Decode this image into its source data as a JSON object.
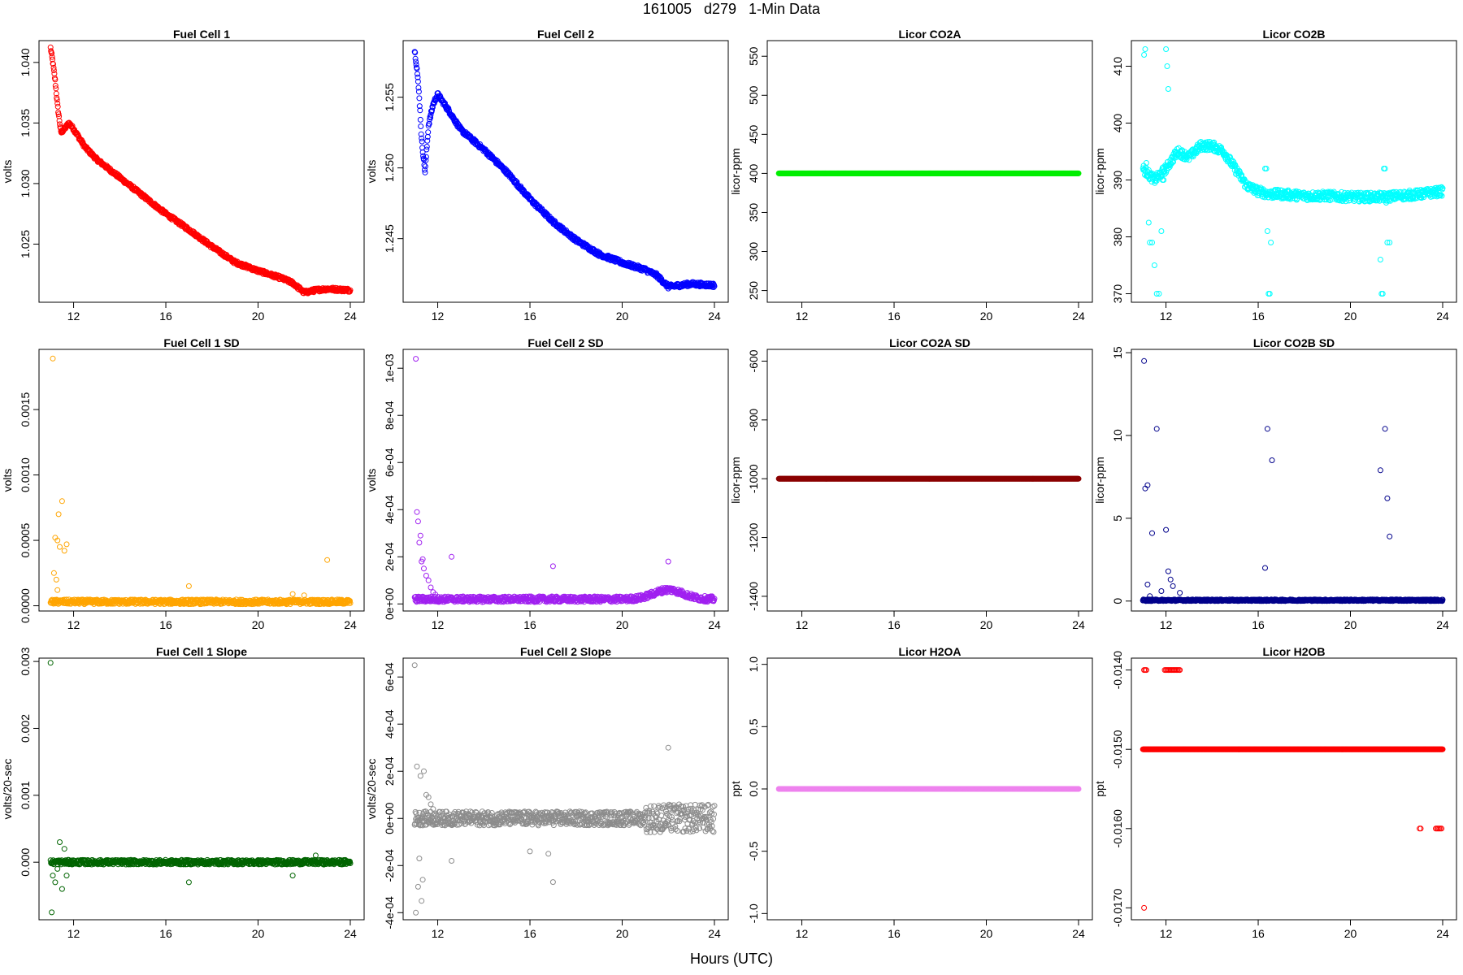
{
  "page": {
    "title": "161005   d279   1-Min Data",
    "xlabel": "Hours (UTC)"
  },
  "x_axis": {
    "ticks": [
      12,
      16,
      20,
      24
    ],
    "labels": [
      "12",
      "16",
      "20",
      "24"
    ],
    "range": [
      10.5,
      24.6
    ]
  },
  "chart_data": [
    {
      "id": "p0",
      "title": "Fuel Cell 1",
      "type": "scatter",
      "color": "#ff0000",
      "ylabel": "volts",
      "ylim": [
        1.0202,
        1.0418
      ],
      "yticks": [
        1.025,
        1.03,
        1.035,
        1.04
      ],
      "yticklabels": [
        "1.025",
        "1.030",
        "1.035",
        "1.040"
      ],
      "series": {
        "kind": "curve",
        "x": [
          11.0,
          11.1,
          11.2,
          11.3,
          11.45,
          11.6,
          11.8,
          12.0,
          12.5,
          13.0,
          14.0,
          15.0,
          16.0,
          17.0,
          18.0,
          19.0,
          20.0,
          21.0,
          21.5,
          22.0,
          22.5,
          23.0,
          24.0
        ],
        "y": [
          1.0412,
          1.04,
          1.0385,
          1.0365,
          1.0342,
          1.0345,
          1.035,
          1.0345,
          1.033,
          1.032,
          1.0305,
          1.029,
          1.0275,
          1.0262,
          1.0248,
          1.0235,
          1.0228,
          1.0222,
          1.0218,
          1.021,
          1.0212,
          1.0213,
          1.0212
        ],
        "noise": 0.00015
      }
    },
    {
      "id": "p1",
      "title": "Fuel Cell 2",
      "type": "scatter",
      "color": "#0000ff",
      "ylabel": "volts",
      "ylim": [
        1.2405,
        1.259
      ],
      "yticks": [
        1.245,
        1.25,
        1.255
      ],
      "yticklabels": [
        "1.245",
        "1.250",
        "1.255"
      ],
      "series": {
        "kind": "curve",
        "x": [
          11.0,
          11.1,
          11.2,
          11.3,
          11.45,
          11.6,
          11.8,
          12.0,
          12.5,
          13.0,
          14.0,
          15.0,
          16.0,
          17.0,
          18.0,
          19.0,
          20.0,
          21.0,
          21.5,
          22.0,
          22.5,
          23.0,
          24.0
        ],
        "y": [
          1.2583,
          1.257,
          1.255,
          1.252,
          1.2497,
          1.253,
          1.2545,
          1.2552,
          1.254,
          1.2527,
          1.2513,
          1.2497,
          1.2478,
          1.2462,
          1.2449,
          1.2439,
          1.2433,
          1.2428,
          1.2424,
          1.2416,
          1.2417,
          1.2418,
          1.2417
        ],
        "noise": 0.00015
      }
    },
    {
      "id": "p2",
      "title": "Licor CO2A",
      "type": "scatter",
      "color": "#00ee00",
      "ylabel": "licor-ppm",
      "ylim": [
        235,
        570
      ],
      "yticks": [
        250,
        300,
        350,
        400,
        450,
        500,
        550
      ],
      "yticklabels": [
        "250",
        "300",
        "350",
        "400",
        "450",
        "500",
        "550"
      ],
      "series": {
        "kind": "const",
        "y": 400
      }
    },
    {
      "id": "p3",
      "title": "Licor CO2B",
      "type": "scatter",
      "color": "#00ffff",
      "ylabel": "licor-ppm",
      "ylim": [
        368.5,
        414.5
      ],
      "yticks": [
        370,
        380,
        390,
        400,
        410
      ],
      "yticklabels": [
        "370",
        "380",
        "390",
        "400",
        "410"
      ],
      "series": {
        "kind": "curve",
        "x": [
          11.0,
          11.5,
          12.0,
          12.5,
          13.0,
          13.5,
          14.0,
          14.5,
          15.0,
          15.5,
          16.0,
          16.5,
          17.0,
          18.0,
          19.0,
          20.0,
          21.0,
          21.5,
          22.0,
          23.0,
          24.0
        ],
        "y": [
          392,
          390,
          392,
          395,
          394,
          396,
          396,
          395,
          392,
          389,
          388,
          387.5,
          387.5,
          387.2,
          387.2,
          387.0,
          387.0,
          387.0,
          387.2,
          387.5,
          388
        ],
        "noise": 0.8,
        "extra": {
          "x": [
            11.05,
            11.1,
            11.15,
            11.2,
            11.25,
            11.3,
            11.4,
            11.5,
            11.6,
            11.7,
            11.8,
            11.82,
            11.85,
            11.9,
            12.0,
            12.05,
            12.1,
            16.3,
            16.35,
            16.4,
            16.45,
            16.5,
            16.55,
            21.3,
            21.35,
            21.4,
            21.45,
            21.5,
            21.55,
            21.6,
            21.7
          ],
          "y": [
            412,
            413,
            393,
            391.5,
            382.5,
            379,
            379,
            375,
            370,
            370,
            381,
            391,
            390,
            390,
            413,
            410,
            406,
            392,
            392,
            381,
            370,
            370,
            379,
            376,
            370,
            370,
            392,
            392,
            386,
            379,
            379
          ]
        }
      }
    },
    {
      "id": "p4",
      "title": "Fuel Cell 1 SD",
      "type": "scatter",
      "color": "#ffa500",
      "ylabel": "volts",
      "ylim": [
        -4e-05,
        0.00196
      ],
      "yticks": [
        0.0,
        0.0005,
        0.001,
        0.0015
      ],
      "yticklabels": [
        "0.0000",
        "0.0005",
        "0.0010",
        "0.0015"
      ],
      "series": {
        "kind": "noise",
        "base": 3e-05,
        "noise": 1.8e-05,
        "extra": {
          "x": [
            11.1,
            11.2,
            11.3,
            11.35,
            11.4,
            11.5,
            11.6,
            11.7,
            11.25,
            11.3,
            11.15,
            17.0,
            23.0,
            22.0,
            21.5
          ],
          "y": [
            0.00189,
            0.00052,
            0.0005,
            0.0007,
            0.00045,
            0.0008,
            0.00042,
            0.00047,
            0.0002,
            0.00012,
            0.00025,
            0.00015,
            0.00035,
            8e-05,
            9e-05
          ]
        }
      }
    },
    {
      "id": "p5",
      "title": "Fuel Cell 2 SD",
      "type": "scatter",
      "color": "#a020f0",
      "ylabel": "volts",
      "ylim": [
        -3e-05,
        0.00108
      ],
      "yticks": [
        0.0,
        0.0002,
        0.0004,
        0.0006,
        0.0008,
        0.001
      ],
      "yticklabels": [
        "0e+00",
        "2e-04",
        "4e-04",
        "6e-04",
        "8e-04",
        "1e-03"
      ],
      "series": {
        "kind": "noise",
        "base": 2e-05,
        "noise": 1.2e-05,
        "bump": {
          "center": 22.0,
          "width": 0.9,
          "height": 4e-05
        },
        "extra": {
          "x": [
            11.05,
            11.1,
            11.15,
            11.2,
            11.25,
            11.3,
            11.35,
            11.4,
            11.5,
            11.6,
            12.6,
            17.0,
            22.0,
            11.7,
            11.8,
            11.9
          ],
          "y": [
            0.00104,
            0.00039,
            0.00035,
            0.00026,
            0.00029,
            0.00018,
            0.00019,
            0.00015,
            0.00012,
            0.0001,
            0.0002,
            0.00016,
            0.00018,
            7e-05,
            5e-05,
            4e-05
          ]
        }
      }
    },
    {
      "id": "p6",
      "title": "Licor CO2A SD",
      "type": "scatter",
      "color": "#8b0000",
      "ylabel": "licor-ppm",
      "ylim": [
        -1450,
        -560
      ],
      "yticks": [
        -1400,
        -1200,
        -1000,
        -800,
        -600
      ],
      "yticklabels": [
        "-1400",
        "-1200",
        "-1000",
        "-800",
        "-600"
      ],
      "series": {
        "kind": "const",
        "y": -1000
      }
    },
    {
      "id": "p7",
      "title": "Licor CO2B SD",
      "type": "scatter",
      "color": "#00008b",
      "ylabel": "licor-ppm",
      "ylim": [
        -0.6,
        15.2
      ],
      "yticks": [
        0,
        5,
        10,
        15
      ],
      "yticklabels": [
        "0",
        "5",
        "10",
        "15"
      ],
      "series": {
        "kind": "noise",
        "base": 0.05,
        "noise": 0.05,
        "extra": {
          "x": [
            11.05,
            11.1,
            11.2,
            11.4,
            11.6,
            11.8,
            12.0,
            12.1,
            12.2,
            12.3,
            12.6,
            11.2,
            11.3,
            16.3,
            16.4,
            16.6,
            21.3,
            21.5,
            21.6,
            21.7
          ],
          "y": [
            14.5,
            6.8,
            7.0,
            4.1,
            10.4,
            0.6,
            4.3,
            1.8,
            1.3,
            0.9,
            0.5,
            1.0,
            0.3,
            2.0,
            10.4,
            8.5,
            7.9,
            10.4,
            6.2,
            3.9
          ]
        }
      }
    },
    {
      "id": "p8",
      "title": "Fuel Cell 1 Slope",
      "type": "scatter",
      "color": "#006400",
      "ylabel": "volts/20-sec",
      "ylim": [
        -0.00086,
        0.00305
      ],
      "yticks": [
        0.0,
        0.001,
        0.002,
        0.003
      ],
      "yticklabels": [
        "0.000",
        "0.001",
        "0.002",
        "0.003"
      ],
      "series": {
        "kind": "noise",
        "base": 0.0,
        "noise": 3.5e-05,
        "extra": {
          "x": [
            11.0,
            11.05,
            11.1,
            11.2,
            11.3,
            11.4,
            11.5,
            11.6,
            11.7,
            17.0,
            21.5,
            22.5
          ],
          "y": [
            0.00298,
            -0.00075,
            -0.0002,
            -0.0003,
            -0.0001,
            0.0003,
            -0.0004,
            0.0002,
            -0.0002,
            -0.0003,
            -0.0002,
            0.0001
          ]
        }
      }
    },
    {
      "id": "p9",
      "title": "Fuel Cell 2 Slope",
      "type": "scatter",
      "color": "#8c8c8c",
      "ylabel": "volts/20-sec",
      "ylim": [
        -0.00043,
        0.00068
      ],
      "yticks": [
        -0.0004,
        -0.0002,
        0.0,
        0.0002,
        0.0004,
        0.0006
      ],
      "yticklabels": [
        "-4e-04",
        "-2e-04",
        "0e+00",
        "2e-04",
        "4e-04",
        "6e-04"
      ],
      "series": {
        "kind": "noise",
        "base": 0.0,
        "noise": 3e-05,
        "bump": {
          "center": 22.5,
          "width": 1.8,
          "height": 0.0
        },
        "noise_tail": 6e-05,
        "extra": {
          "x": [
            11.0,
            11.05,
            11.1,
            11.15,
            11.2,
            11.25,
            11.3,
            11.35,
            11.4,
            11.5,
            11.6,
            11.7,
            11.8,
            12.6,
            16.0,
            16.8,
            17.0,
            22.0
          ],
          "y": [
            0.00065,
            -0.0004,
            0.00022,
            -0.00029,
            -0.00017,
            0.00018,
            -0.00035,
            -0.00026,
            0.0002,
            0.0001,
            9e-05,
            6e-05,
            4e-05,
            -0.00018,
            -0.00014,
            -0.00015,
            -0.00027,
            0.0003
          ]
        }
      }
    },
    {
      "id": "p10",
      "title": "Licor H2OA",
      "type": "scatter",
      "color": "#ee82ee",
      "ylabel": "ppt",
      "ylim": [
        -1.05,
        1.05
      ],
      "yticks": [
        -1.0,
        -0.5,
        0.0,
        0.5,
        1.0
      ],
      "yticklabels": [
        "-1.0",
        "-0.5",
        "0.0",
        "0.5",
        "1.0"
      ],
      "series": {
        "kind": "const",
        "y": 0.0
      }
    },
    {
      "id": "p11",
      "title": "Licor H2OB",
      "type": "scatter",
      "color": "#ff0000",
      "ylabel": "ppt",
      "ylim": [
        -0.01715,
        -0.01385
      ],
      "yticks": [
        -0.017,
        -0.016,
        -0.015,
        -0.014
      ],
      "yticklabels": [
        "-0.0170",
        "-0.0160",
        "-0.0150",
        "-0.0140"
      ],
      "series": {
        "kind": "const",
        "y": -0.015,
        "extra": {
          "x": [
            11.05,
            11.1,
            11.15,
            11.95,
            12.0,
            12.05,
            12.1,
            12.15,
            12.2,
            12.25,
            12.3,
            12.35,
            12.4,
            12.45,
            12.5,
            12.55,
            12.6,
            23.0,
            23.05,
            23.7,
            23.75,
            23.8,
            23.85,
            23.9,
            23.95,
            11.05
          ],
          "y": [
            -0.014,
            -0.014,
            -0.014,
            -0.014,
            -0.014,
            -0.014,
            -0.014,
            -0.014,
            -0.014,
            -0.014,
            -0.014,
            -0.014,
            -0.014,
            -0.014,
            -0.014,
            -0.014,
            -0.014,
            -0.016,
            -0.016,
            -0.016,
            -0.016,
            -0.016,
            -0.016,
            -0.016,
            -0.016,
            -0.017
          ]
        }
      }
    }
  ]
}
